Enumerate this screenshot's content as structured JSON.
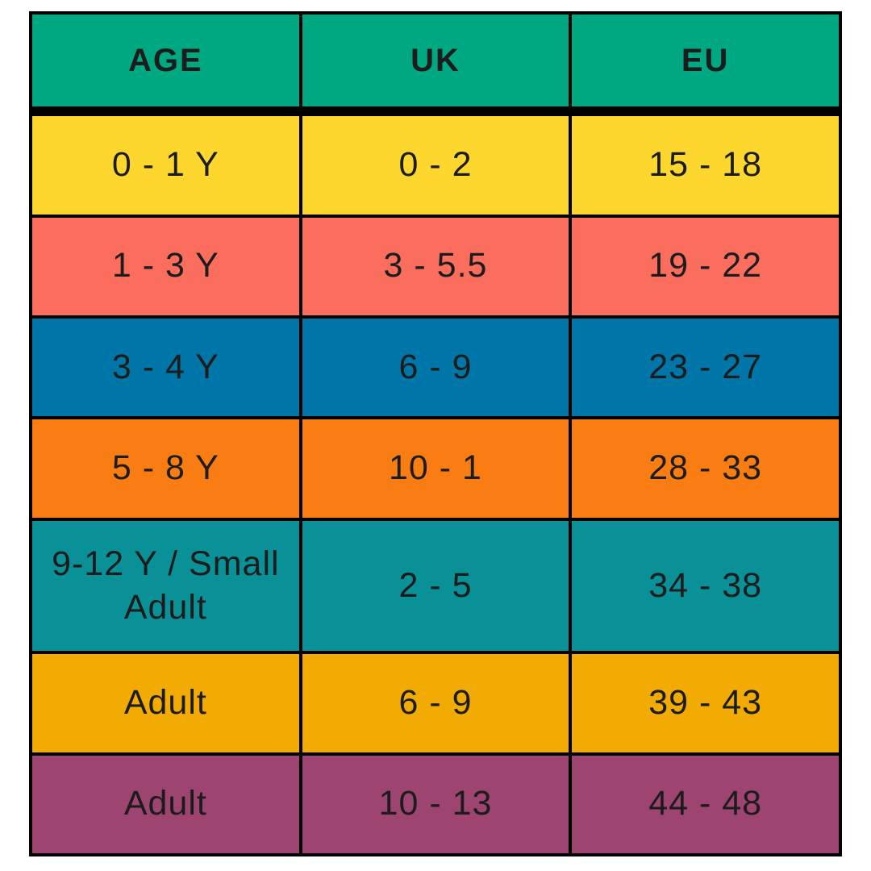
{
  "chart_data": {
    "type": "table",
    "columns": [
      "AGE",
      "UK",
      "EU"
    ],
    "rows": [
      [
        "0 - 1 Y",
        "0 - 2",
        "15 - 18"
      ],
      [
        "1 - 3 Y",
        "3 - 5.5",
        "19 - 22"
      ],
      [
        "3 - 4 Y",
        "6 - 9",
        "23 - 27"
      ],
      [
        "5 - 8 Y",
        "10 - 1",
        "28 - 33"
      ],
      [
        "9-12 Y / Small Adult",
        "2 - 5",
        "34 - 38"
      ],
      [
        "Adult",
        "6 - 9",
        "39 - 43"
      ],
      [
        "Adult",
        "10 - 13",
        "44 - 48"
      ]
    ],
    "header_color": "#00A881",
    "row_colors": [
      "#FED72E",
      "#FB6D5D",
      "#0076A8",
      "#FA7D13",
      "#0A9097",
      "#F1AB02",
      "#9D4470"
    ],
    "text_color": "#1C1C1C",
    "border_color": "#000000",
    "layout": {
      "grid": "on",
      "columns_equal_width": true,
      "header_row": true
    }
  }
}
